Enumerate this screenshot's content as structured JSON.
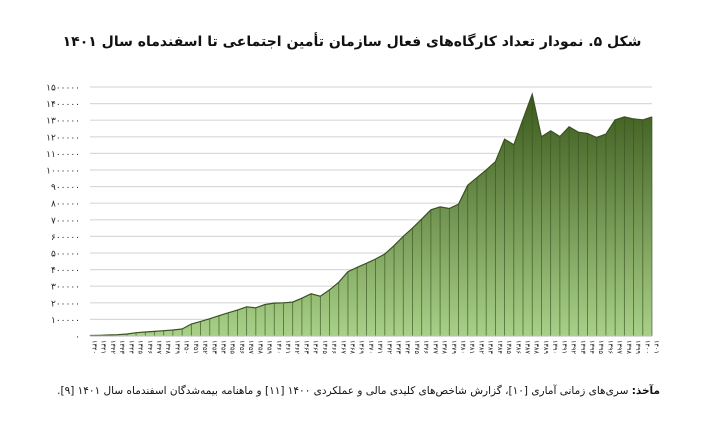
{
  "chart_data": {
    "type": "area",
    "title": "شکل ۵. نمودار تعداد کارگاه‌های فعال سازمان تأمین اجتماعی تا اسفندماه سال ۱۴۰۱",
    "xlabel": "",
    "ylabel": "",
    "ylim": [
      0,
      1500000
    ],
    "grid": true,
    "fill_top_color": "#3b5a1c",
    "fill_bottom_color": "#a8d088",
    "line_color": "#3a5220",
    "categories": [
      "۱۳۴۰",
      "۱۳۴۱",
      "۱۳۴۲",
      "۱۳۴۳",
      "۱۳۴۴",
      "۱۳۴۵",
      "۱۳۴۶",
      "۱۳۴۷",
      "۱۳۴۸",
      "۱۳۴۹",
      "۱۳۵۰",
      "۱۳۵۱",
      "۱۳۵۲",
      "۱۳۵۳",
      "۱۳۵۴",
      "۱۳۵۵",
      "۱۳۵۶",
      "۱۳۵۷",
      "۱۳۵۸",
      "۱۳۵۹",
      "۱۳۶۰",
      "۱۳۶۱",
      "۱۳۶۲",
      "۱۳۶۳",
      "۱۳۶۴",
      "۱۳۶۵",
      "۱۳۶۶",
      "۱۳۶۷",
      "۱۳۶۸",
      "۱۳۶۹",
      "۱۳۷۰",
      "۱۳۷۱",
      "۱۳۷۲",
      "۱۳۷۳",
      "۱۳۷۴",
      "۱۳۷۵",
      "۱۳۷۶",
      "۱۳۷۷",
      "۱۳۷۸",
      "۱۳۷۹",
      "۱۳۸۰",
      "۱۳۸۱",
      "۱۳۸۲",
      "۱۳۸۳",
      "۱۳۸۴",
      "۱۳۸۵",
      "۱۳۸۶",
      "۱۳۸۷",
      "۱۳۸۸",
      "۱۳۸۹",
      "۱۳۹۰",
      "۱۳۹۱",
      "۱۳۹۲",
      "۱۳۹۳",
      "۱۳۹۴",
      "۱۳۹۵",
      "۱۳۹۶",
      "۱۳۹۷",
      "۱۳۹۸",
      "۱۳۹۹",
      "۱۴۰۰",
      "۱۴۰۱"
    ],
    "values": [
      3000,
      4000,
      6000,
      8000,
      12000,
      20000,
      24000,
      28000,
      32000,
      36000,
      42000,
      72000,
      88000,
      104000,
      122000,
      140000,
      156000,
      176000,
      170000,
      190000,
      198000,
      200000,
      204000,
      228000,
      254000,
      240000,
      278000,
      324000,
      388000,
      414000,
      438000,
      464000,
      494000,
      544000,
      600000,
      650000,
      704000,
      760000,
      778000,
      768000,
      794000,
      908000,
      954000,
      1000000,
      1050000,
      1186000,
      1152000,
      1306000,
      1456000,
      1200000,
      1236000,
      1202000,
      1260000,
      1228000,
      1220000,
      1196000,
      1216000,
      1302000,
      1320000,
      1308000,
      1302000,
      1320000
    ],
    "y_ticks": [
      0,
      100000,
      200000,
      300000,
      400000,
      500000,
      600000,
      700000,
      800000,
      900000,
      1000000,
      1100000,
      1200000,
      1300000,
      1400000,
      1500000
    ],
    "y_tick_labels": [
      "۰",
      "۱۰۰۰۰۰",
      "۲۰۰۰۰۰",
      "۳۰۰۰۰۰",
      "۴۰۰۰۰۰",
      "۵۰۰۰۰۰",
      "۶۰۰۰۰۰",
      "۷۰۰۰۰۰",
      "۸۰۰۰۰۰",
      "۹۰۰۰۰۰",
      "۱۰۰۰۰۰۰",
      "۱۱۰۰۰۰۰",
      "۱۲۰۰۰۰۰",
      "۱۳۰۰۰۰۰",
      "۱۴۰۰۰۰۰",
      "۱۵۰۰۰۰۰"
    ]
  },
  "caption": {
    "label": "مآخذ:",
    "text": " سری‌های زمانی آماری [۱۰]، گزارش شاخص‌های کلیدی مالی و عملکردی ۱۴۰۰ [۱۱] و ماهنامه بیمه‌شدگان اسفندماه سال ۱۴۰۱ [۹]."
  }
}
